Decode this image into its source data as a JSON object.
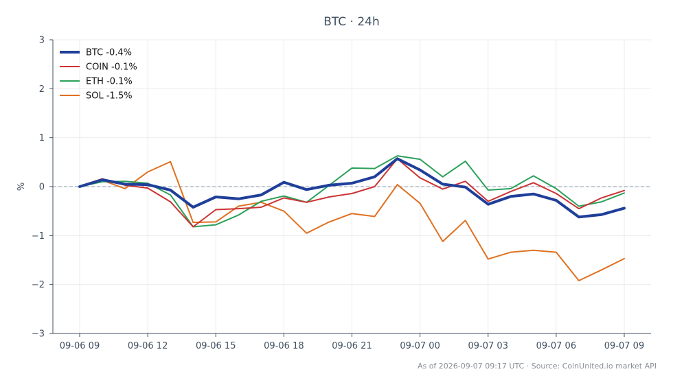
{
  "chart_data": {
    "type": "line",
    "title": "BTC · 24h",
    "ylabel": "%",
    "xlabel": "",
    "ylim": [
      -3,
      3
    ],
    "yticks": [
      3,
      2,
      1,
      0,
      -1,
      -2,
      -3
    ],
    "ytick_labels": [
      "3",
      "2",
      "1",
      "0",
      "−1",
      "−2",
      "−3"
    ],
    "xtick_labels": [
      "09-06 09",
      "09-06 12",
      "09-06 15",
      "09-06 18",
      "09-06 21",
      "09-07 00",
      "09-07 03",
      "09-07 06",
      "09-07 09"
    ],
    "xtick_positions": [
      0,
      3,
      6,
      9,
      12,
      15,
      18,
      21,
      24
    ],
    "x_hours": [
      0,
      1,
      2,
      3,
      4,
      5,
      6,
      7,
      8,
      9,
      10,
      11,
      12,
      13,
      14,
      15,
      16,
      17,
      18,
      19,
      20,
      21,
      22,
      23,
      24
    ],
    "grid": true,
    "zero_line": true,
    "legend_position": "top-left",
    "series": [
      {
        "name": "BTC -0.4%",
        "color": "#1f3f99",
        "width": 4,
        "values": [
          0.0,
          0.14,
          0.05,
          0.04,
          -0.07,
          -0.42,
          -0.21,
          -0.25,
          -0.17,
          0.09,
          -0.06,
          0.03,
          0.07,
          0.2,
          0.57,
          0.34,
          0.05,
          -0.01,
          -0.36,
          -0.2,
          -0.15,
          -0.28,
          -0.62,
          -0.57,
          -0.44
        ]
      },
      {
        "name": "COIN -0.1%",
        "color": "#cc3333",
        "width": 2,
        "values": [
          0.01,
          0.16,
          0.03,
          -0.03,
          -0.31,
          -0.82,
          -0.47,
          -0.45,
          -0.42,
          -0.23,
          -0.32,
          -0.21,
          -0.14,
          0.0,
          0.57,
          0.18,
          -0.05,
          0.11,
          -0.3,
          -0.1,
          0.08,
          -0.14,
          -0.45,
          -0.23,
          -0.08
        ]
      },
      {
        "name": "ETH -0.1%",
        "color": "#2ca05a",
        "width": 2,
        "values": [
          0.0,
          0.1,
          0.11,
          0.07,
          -0.17,
          -0.82,
          -0.78,
          -0.58,
          -0.3,
          -0.19,
          -0.32,
          0.03,
          0.38,
          0.37,
          0.63,
          0.56,
          0.2,
          0.52,
          -0.07,
          -0.04,
          0.22,
          -0.04,
          -0.4,
          -0.31,
          -0.13
        ]
      },
      {
        "name": "SOL -1.5%",
        "color": "#e0701f",
        "width": 2,
        "values": [
          0.01,
          0.13,
          -0.04,
          0.3,
          0.51,
          -0.73,
          -0.72,
          -0.4,
          -0.32,
          -0.5,
          -0.95,
          -0.72,
          -0.55,
          -0.61,
          0.04,
          -0.34,
          -1.12,
          -0.69,
          -1.48,
          -1.34,
          -1.3,
          -1.34,
          -1.92,
          -1.7,
          -1.47
        ]
      }
    ]
  },
  "footer": "As of 2026-09-07 09:17 UTC · Source: CoinUnited.io market API"
}
